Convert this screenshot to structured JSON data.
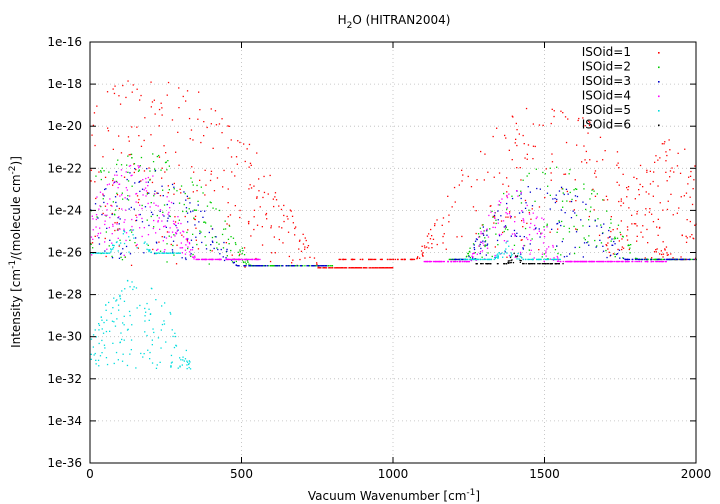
{
  "chart_data": {
    "type": "scatter",
    "title_main": "H",
    "title_sub": "2",
    "title_rest": "O (HITRAN2004)",
    "xlabel": "Vacuum Wavenumber [cm",
    "xlabel_sup": "-1",
    "xlabel_end": "]",
    "ylabel": "Intensity [cm",
    "ylabel_sup1": "-1",
    "ylabel_mid": "/(molecule cm",
    "ylabel_sup2": "-2",
    "ylabel_end": ")]",
    "xlim": [
      0,
      2000
    ],
    "ylim_log10": [
      -36,
      -16
    ],
    "y_scale": "log",
    "x_ticks": [
      0,
      500,
      1000,
      1500,
      2000
    ],
    "x_tick_labels": [
      "0",
      "500",
      "1000",
      "1500",
      "2000"
    ],
    "y_ticks_log10": [
      -36,
      -34,
      -32,
      -30,
      -28,
      -26,
      -24,
      -22,
      -20,
      -18,
      -16
    ],
    "y_tick_labels": [
      "1e-36",
      "1e-34",
      "1e-32",
      "1e-30",
      "1e-28",
      "1e-26",
      "1e-24",
      "1e-22",
      "1e-20",
      "1e-18",
      "1e-16"
    ],
    "grid": true,
    "legend_position": "top-right",
    "series": [
      {
        "name": "ISOid=1",
        "color": "#ff0000",
        "bands": [
          {
            "center": 200,
            "width": 450,
            "top": -17.6,
            "floor": -26.7,
            "count": 420,
            "xmin": 0,
            "xmax": 1000
          },
          {
            "center": 1500,
            "width": 380,
            "top": -18.8,
            "floor": -26.3,
            "count": 300,
            "xmin": 820,
            "xmax": 2000
          },
          {
            "center": 1900,
            "width": 220,
            "top": -20.5,
            "floor": -26.4,
            "count": 120,
            "xmin": 1700,
            "xmax": 2000
          }
        ]
      },
      {
        "name": "ISOid=2",
        "color": "#00cc00",
        "bands": [
          {
            "center": 170,
            "width": 380,
            "top": -21.2,
            "floor": -26.6,
            "count": 260,
            "xmin": 0,
            "xmax": 800
          },
          {
            "center": 1520,
            "width": 330,
            "top": -21.8,
            "floor": -26.3,
            "count": 220,
            "xmin": 1180,
            "xmax": 2000
          }
        ]
      },
      {
        "name": "ISOid=3",
        "color": "#0000cc",
        "bands": [
          {
            "center": 160,
            "width": 360,
            "top": -21.8,
            "floor": -26.6,
            "count": 220,
            "xmin": 0,
            "xmax": 780
          },
          {
            "center": 1500,
            "width": 320,
            "top": -22.3,
            "floor": -26.3,
            "count": 200,
            "xmin": 1180,
            "xmax": 2000
          }
        ]
      },
      {
        "name": "ISOid=4",
        "color": "#ff00ff",
        "bands": [
          {
            "center": 140,
            "width": 240,
            "top": -21.8,
            "floor": -26.3,
            "count": 280,
            "xmin": 0,
            "xmax": 560
          },
          {
            "center": 1400,
            "width": 190,
            "top": -22.8,
            "floor": -26.4,
            "count": 320,
            "xmin": 1100,
            "xmax": 1900
          }
        ]
      },
      {
        "name": "ISOid=5",
        "color": "#00dddd",
        "bands": [
          {
            "center": 130,
            "width": 160,
            "top": -24.8,
            "floor": -26.0,
            "count": 90,
            "xmin": 0,
            "xmax": 300
          },
          {
            "center": 1380,
            "width": 120,
            "top": -25.4,
            "floor": -26.3,
            "count": 110,
            "xmin": 1220,
            "xmax": 1550
          },
          {
            "center": 150,
            "width": 220,
            "top": -27.2,
            "floor": -31.5,
            "count": 160,
            "xmin": 0,
            "xmax": 330
          }
        ]
      },
      {
        "name": "ISOid=6",
        "color": "#000000",
        "bands": [
          {
            "center": 1400,
            "width": 90,
            "top": -26.0,
            "floor": -26.5,
            "count": 90,
            "xmin": 1270,
            "xmax": 1560
          }
        ]
      }
    ]
  }
}
